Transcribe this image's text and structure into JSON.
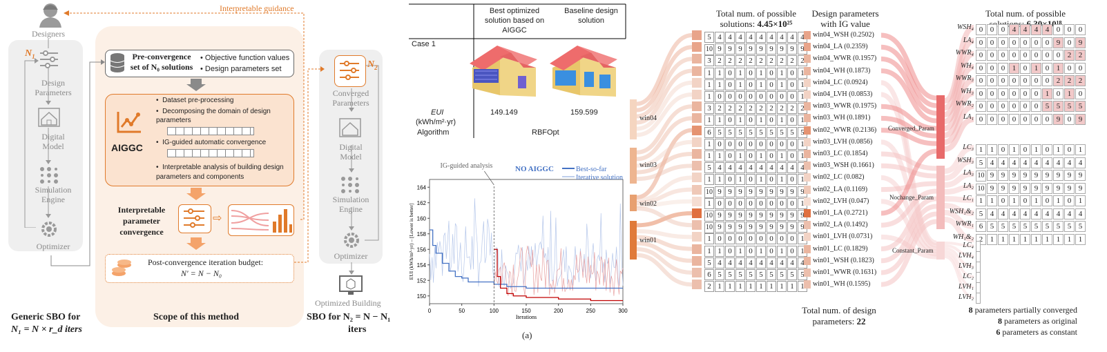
{
  "left": {
    "guidance": "Interpretable guidance",
    "designers": "Designers",
    "n1": "N",
    "n1_sub": "1",
    "design_params": "Design\nParameters",
    "digital_model": "Digital\nModel",
    "sim_engine": "Simulation\nEngine",
    "optimizer": "Optimizer",
    "generic_caption_1": "Generic SBO for",
    "generic_caption_2": "N₁ = N × r_d iters",
    "pre_title": "Pre-convergence\nset of N₀ solutions",
    "pre_bullets": [
      "Objective function values",
      "Design parameters set"
    ],
    "aiggc": "AIGGC",
    "aiggc_bullets": [
      "Dataset pre-processing",
      "Decomposing the domain of design parameters",
      "IG-guided automatic convergence",
      "Interpretable analysis of building design parameters and components"
    ],
    "interp_conv": "Interpretable\nparameter\nconvergence",
    "post_title": "Post-convergence iteration budget:",
    "post_eq": "N′ = N − N₀",
    "scope_caption": "Scope of this method",
    "n2": "N",
    "n2_sub": "2",
    "converged_params": "Converged\nParameters",
    "digital_model2": "Digital\nModel",
    "sim_engine2": "Simulation\nEngine",
    "optimizer2": "Optimizer",
    "optimized_building": "Optimized Building",
    "sbo2_caption_1": "SBO for N₂ = N − N₁",
    "sbo2_caption_2": "iters"
  },
  "table": {
    "col1": "Best optimized solution based on AIGGC",
    "col2": "Baseline design solution",
    "case": "Case 1",
    "eui_label": "EUI",
    "eui_unit": "(kWh/m²·yr)",
    "algorithm": "Algorithm",
    "v1": "149.149",
    "v2": "159.599",
    "algo": "RBFOpt"
  },
  "chart_data": {
    "type": "line",
    "title": "",
    "xlabel": "Iterations",
    "ylabel": "EUI (kWh/m²·yr) – [Lower is better]",
    "xlim": [
      0,
      300
    ],
    "ylim": [
      149,
      165
    ],
    "xticks": [
      0,
      50,
      100,
      150,
      200,
      250,
      300
    ],
    "yticks": [
      150,
      152,
      154,
      156,
      158,
      160,
      162,
      164
    ],
    "annotation": "IG-guided analysis",
    "annotation_x": 100,
    "legend_title": "NO AIGGC",
    "series": [
      {
        "name": "Best-so-far",
        "color": "#4472c4",
        "x": [
          0,
          5,
          10,
          20,
          30,
          40,
          50,
          60,
          80,
          100,
          120,
          150,
          200,
          300
        ],
        "values": [
          158.5,
          156.5,
          155.5,
          154.2,
          153.2,
          152.5,
          152.3,
          151.8,
          151.8,
          151.5,
          151.2,
          151.0,
          151.0,
          151.0
        ]
      },
      {
        "name": "Iterative solution",
        "color": "#a9bde6",
        "x": [],
        "values": []
      },
      {
        "name": "",
        "color": "#c00000",
        "x": [
          100,
          105,
          110,
          120,
          130,
          150,
          200,
          250,
          300
        ],
        "values": [
          156.0,
          152.5,
          151.0,
          150.3,
          150.0,
          149.8,
          149.6,
          149.4,
          149.4
        ]
      }
    ],
    "caption": "(a)"
  },
  "sankey": {
    "left_nodes": [
      "win04",
      "win03",
      "win02",
      "win01"
    ],
    "top_header_1": "Total num. of possible",
    "top_header_2": "solutions: ",
    "top_header_value": "4.45×10²⁵",
    "ig_header_1": "Design parameters",
    "ig_header_2": "with IG value",
    "rows": [
      {
        "cells": [
          "5",
          "4",
          "4",
          "4",
          "4",
          "4",
          "4",
          "4",
          "4",
          "4"
        ],
        "label": "win04_WSH (0.2502)",
        "shade": "#e8a48a"
      },
      {
        "cells": [
          "10",
          "9",
          "9",
          "9",
          "9",
          "9",
          "9",
          "9",
          "9",
          "9"
        ],
        "label": "win04_LA (0.2359)",
        "shade": "#e8a48a"
      },
      {
        "cells": [
          "3",
          "2",
          "2",
          "2",
          "2",
          "2",
          "2",
          "2",
          "2",
          "2"
        ],
        "label": "win04_WWR (0.1957)",
        "shade": "#eab59f"
      },
      {
        "cells": [
          "1",
          "1",
          "0",
          "1",
          "0",
          "1",
          "0",
          "1",
          "0",
          "1"
        ],
        "label": "win04_WH (0.1873)",
        "shade": "#eab59f"
      },
      {
        "cells": [
          "1",
          "1",
          "0",
          "1",
          "0",
          "1",
          "0",
          "1",
          "0",
          "1"
        ],
        "label": "win04_LC (0.0924)",
        "shade": "#f2d3c5"
      },
      {
        "cells": [
          "1",
          "0",
          "0",
          "0",
          "0",
          "0",
          "0",
          "0",
          "0",
          "1"
        ],
        "label": "win04_LVH (0.0853)",
        "shade": "#f2d3c5"
      },
      {
        "cells": [
          "3",
          "2",
          "2",
          "2",
          "2",
          "2",
          "2",
          "2",
          "2",
          "2"
        ],
        "label": "win03_WWR (0.1975)",
        "shade": "#eab59f"
      },
      {
        "cells": [
          "1",
          "1",
          "0",
          "1",
          "0",
          "1",
          "0",
          "1",
          "0",
          "1"
        ],
        "label": "win03_WH (0.1891)",
        "shade": "#eab59f"
      },
      {
        "cells": [
          "6",
          "5",
          "5",
          "5",
          "5",
          "5",
          "5",
          "5",
          "5",
          "5"
        ],
        "label": "win02_WWR (0.2136)",
        "shade": "#e59371"
      },
      {
        "cells": [
          "1",
          "0",
          "0",
          "0",
          "0",
          "0",
          "0",
          "0",
          "0",
          "1"
        ],
        "label": "win03_LVH (0.0856)",
        "shade": "#f2d3c5"
      },
      {
        "cells": [
          "1",
          "1",
          "0",
          "1",
          "0",
          "1",
          "0",
          "1",
          "0",
          "1"
        ],
        "label": "win03_LC (0.1854)",
        "shade": "#eab59f"
      },
      {
        "cells": [
          "5",
          "4",
          "4",
          "4",
          "4",
          "4",
          "4",
          "4",
          "4",
          "4"
        ],
        "label": "win03_WSH (0.1661)",
        "shade": "#ecbfad"
      },
      {
        "cells": [
          "1",
          "1",
          "0",
          "1",
          "0",
          "1",
          "0",
          "1",
          "0",
          "1"
        ],
        "label": "win02_LC (0.082)",
        "shade": "#f2d3c5"
      },
      {
        "cells": [
          "10",
          "9",
          "9",
          "9",
          "9",
          "9",
          "9",
          "9",
          "9",
          "9"
        ],
        "label": "win02_LA (0.1169)",
        "shade": "#efc8b7"
      },
      {
        "cells": [
          "1",
          "0",
          "0",
          "0",
          "0",
          "0",
          "0",
          "0",
          "0",
          "1"
        ],
        "label": "win02_LVH (0.047)",
        "shade": "#f5ddd2"
      },
      {
        "cells": [
          "10",
          "9",
          "9",
          "9",
          "9",
          "9",
          "9",
          "9",
          "9",
          "9"
        ],
        "label": "win01_LA (0.2721)",
        "shade": "#e07040"
      },
      {
        "cells": [
          "10",
          "9",
          "9",
          "9",
          "9",
          "9",
          "9",
          "9",
          "9",
          "9"
        ],
        "label": "win02_LA (0.1492)",
        "shade": "#ecbfad"
      },
      {
        "cells": [
          "1",
          "0",
          "0",
          "0",
          "0",
          "0",
          "0",
          "0",
          "0",
          "1"
        ],
        "label": "win01_LVH (0.0731)",
        "shade": "#f2d3c5"
      },
      {
        "cells": [
          "1",
          "1",
          "0",
          "1",
          "0",
          "1",
          "0",
          "1",
          "0",
          "1"
        ],
        "label": "win01_LC (0.1829)",
        "shade": "#eab59f"
      },
      {
        "cells": [
          "5",
          "4",
          "4",
          "4",
          "4",
          "4",
          "4",
          "4",
          "4",
          "4"
        ],
        "label": "win01_WSH (0.1823)",
        "shade": "#eab59f"
      },
      {
        "cells": [
          "6",
          "5",
          "5",
          "5",
          "5",
          "5",
          "5",
          "5",
          "5",
          "5"
        ],
        "label": "win01_WWR (0.1631)",
        "shade": "#ecbfad"
      },
      {
        "cells": [
          "2",
          "1",
          "1",
          "1",
          "1",
          "1",
          "1",
          "1",
          "1",
          "1"
        ],
        "label": "win01_WH (0.1595)",
        "shade": "#ecbfad"
      }
    ],
    "bottom_1": "Total num. of design",
    "bottom_2": "parameters: ",
    "bottom_value": "22",
    "right_nodes": [
      "Converged_Param",
      "Nochange_Param",
      "Constant_Param"
    ]
  },
  "right": {
    "header_1": "Total num. of possible",
    "header_2": "solutions: ",
    "header_value": "6.30×10¹⁸",
    "converged": [
      {
        "label": "WSH₄",
        "cells": [
          "0",
          "0",
          "0",
          "4",
          "4",
          "4",
          "4",
          "0",
          "0",
          "0"
        ],
        "hl": [
          3,
          4,
          5,
          6
        ]
      },
      {
        "label": "LA₄",
        "cells": [
          "0",
          "0",
          "0",
          "0",
          "0",
          "0",
          "0",
          "9",
          "0",
          "9"
        ],
        "hl": [
          7,
          9
        ]
      },
      {
        "label": "WWR₄",
        "cells": [
          "0",
          "0",
          "0",
          "0",
          "0",
          "0",
          "0",
          "0",
          "2",
          "2"
        ],
        "hl": [
          8,
          9
        ]
      },
      {
        "label": "WH₄",
        "cells": [
          "0",
          "0",
          "0",
          "1",
          "0",
          "1",
          "0",
          "1",
          "0",
          "0"
        ],
        "hl": [
          3,
          5,
          7
        ]
      },
      {
        "label": "WWR₃",
        "cells": [
          "0",
          "0",
          "0",
          "0",
          "0",
          "0",
          "0",
          "2",
          "2",
          "2"
        ],
        "hl": [
          7,
          8,
          9
        ]
      },
      {
        "label": "WH₃",
        "cells": [
          "0",
          "0",
          "0",
          "0",
          "0",
          "0",
          "1",
          "0",
          "1",
          "0"
        ],
        "hl": [
          6,
          8
        ]
      },
      {
        "label": "WWR₂",
        "cells": [
          "0",
          "0",
          "0",
          "0",
          "0",
          "0",
          "5",
          "5",
          "5",
          "5"
        ],
        "hl": [
          6,
          7,
          8,
          9
        ]
      },
      {
        "label": "LA₁",
        "cells": [
          "0",
          "0",
          "0",
          "0",
          "0",
          "0",
          "0",
          "9",
          "0",
          "9"
        ],
        "hl": [
          7,
          9
        ]
      }
    ],
    "nochange": [
      {
        "label": "LC₃",
        "cells": [
          "1",
          "1",
          "0",
          "1",
          "0",
          "1",
          "0",
          "1",
          "0",
          "1"
        ]
      },
      {
        "label": "WSH₃",
        "cells": [
          "5",
          "4",
          "4",
          "4",
          "4",
          "4",
          "4",
          "4",
          "4",
          "4"
        ]
      },
      {
        "label": "LA₃",
        "cells": [
          "10",
          "9",
          "9",
          "9",
          "9",
          "9",
          "9",
          "9",
          "9",
          "9"
        ]
      },
      {
        "label": "LA₂",
        "cells": [
          "10",
          "9",
          "9",
          "9",
          "9",
          "9",
          "9",
          "9",
          "9",
          "9"
        ]
      },
      {
        "label": "LC₁",
        "cells": [
          "1",
          "1",
          "0",
          "1",
          "0",
          "1",
          "0",
          "1",
          "0",
          "1"
        ]
      },
      {
        "label": "WSH₁&₂",
        "cells": [
          "5",
          "4",
          "4",
          "4",
          "4",
          "4",
          "4",
          "4",
          "4",
          "4"
        ]
      },
      {
        "label": "WWR₁",
        "cells": [
          "6",
          "5",
          "5",
          "5",
          "5",
          "5",
          "5",
          "5",
          "5",
          "5"
        ]
      },
      {
        "label": "WH₁&₂",
        "cells": [
          "2",
          "1",
          "1",
          "1",
          "1",
          "1",
          "1",
          "1",
          "1",
          "1"
        ]
      }
    ],
    "constant": [
      "LC₄",
      "LVH₄",
      "LVH₃",
      "LC₂",
      "LVH₁",
      "LVH₂"
    ],
    "summary": [
      {
        "num": "8",
        "text": " parameters partially converged"
      },
      {
        "num": "8",
        "text": " parameters as original"
      },
      {
        "num": "6",
        "text": " parameters as constant"
      }
    ]
  }
}
